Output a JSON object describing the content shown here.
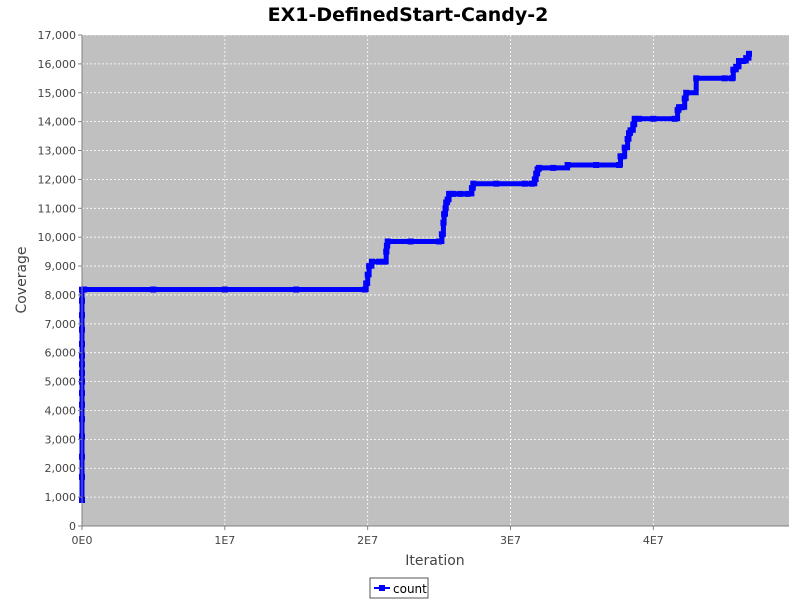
{
  "chart_data": {
    "type": "line",
    "title": "EX1-DefinedStart-Candy-2",
    "xlabel": "Iteration",
    "ylabel": "Coverage",
    "xlim": [
      0,
      49500000
    ],
    "ylim": [
      0,
      17000
    ],
    "x_ticks": [
      0,
      10000000,
      20000000,
      30000000,
      40000000
    ],
    "x_tick_labels": [
      "0E0",
      "1E7",
      "2E7",
      "3E7",
      "4E7"
    ],
    "y_ticks": [
      0,
      1000,
      2000,
      3000,
      4000,
      5000,
      6000,
      7000,
      8000,
      9000,
      10000,
      11000,
      12000,
      13000,
      14000,
      15000,
      16000,
      17000
    ],
    "y_tick_labels": [
      "0",
      "1,000",
      "2,000",
      "3,000",
      "4,000",
      "5,000",
      "6,000",
      "7,000",
      "8,000",
      "9,000",
      "10,000",
      "11,000",
      "12,000",
      "13,000",
      "14,000",
      "15,000",
      "16,000",
      "17,000"
    ],
    "grid": true,
    "legend_position": "bottom-center",
    "background_color": "#c0c0c0",
    "series": [
      {
        "name": "count",
        "color": "#0000ff",
        "x": [
          0,
          0,
          0,
          0,
          0,
          0,
          0,
          0,
          0,
          0,
          0,
          0,
          0,
          0,
          0,
          0,
          150000,
          5000000,
          10000000,
          15000000,
          19800000,
          19900000,
          20000000,
          20100000,
          20300000,
          20800000,
          21200000,
          21300000,
          21350000,
          21400000,
          23000000,
          25000000,
          25200000,
          25300000,
          25350000,
          25450000,
          25500000,
          25600000,
          25700000,
          25800000,
          26000000,
          26500000,
          27000000,
          27300000,
          27400000,
          29000000,
          31000000,
          31500000,
          31700000,
          31800000,
          31900000,
          32000000,
          33000000,
          34000000,
          36000000,
          37600000,
          37700000,
          37900000,
          38000000,
          38200000,
          38300000,
          38400000,
          38600000,
          38700000,
          39000000,
          40000000,
          41500000,
          41700000,
          41800000,
          42000000,
          42200000,
          42300000,
          43000000,
          45000000,
          45500000,
          45600000,
          45800000,
          46000000,
          46300000,
          46500000,
          46700000
        ],
        "values": [
          900,
          1700,
          2400,
          3100,
          3700,
          4200,
          4600,
          5000,
          5300,
          5600,
          5900,
          6300,
          6800,
          7300,
          7800,
          8180,
          8190,
          8190,
          8190,
          8190,
          8190,
          8400,
          8700,
          9000,
          9150,
          9150,
          9150,
          9500,
          9700,
          9850,
          9850,
          9850,
          10100,
          10500,
          10800,
          11000,
          11200,
          11300,
          11500,
          11500,
          11500,
          11500,
          11500,
          11700,
          11850,
          11850,
          11850,
          11850,
          12000,
          12200,
          12350,
          12400,
          12400,
          12500,
          12500,
          12500,
          12800,
          12800,
          13100,
          13400,
          13600,
          13700,
          13900,
          14100,
          14100,
          14100,
          14100,
          14400,
          14500,
          14500,
          14800,
          15000,
          15500,
          15500,
          15500,
          15800,
          15900,
          16100,
          16100,
          16200,
          16350
        ]
      }
    ]
  }
}
